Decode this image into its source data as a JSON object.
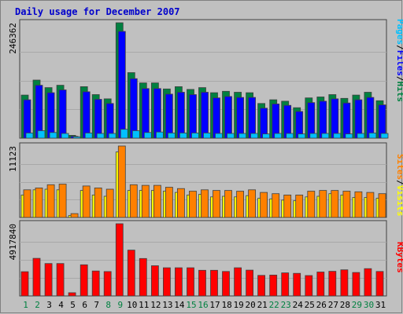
{
  "chart_data": {
    "type": "bar",
    "title": "Daily usage for December 2007",
    "categories": [
      "1",
      "2",
      "3",
      "4",
      "5",
      "6",
      "7",
      "8",
      "9",
      "10",
      "11",
      "12",
      "13",
      "14",
      "15",
      "16",
      "17",
      "18",
      "19",
      "20",
      "21",
      "22",
      "23",
      "24",
      "25",
      "26",
      "27",
      "28",
      "29",
      "30",
      "31"
    ],
    "weekend_days": [
      "1",
      "2",
      "8",
      "9",
      "15",
      "16",
      "22",
      "23",
      "29",
      "30"
    ],
    "colors": {
      "background": "#c0c0c0",
      "border": "#808080",
      "hits": "#008040",
      "files": "#0000ff",
      "pages": "#00c0ff",
      "visits": "#ffff00",
      "sites": "#ff8000",
      "kbytes": "#ff0000",
      "weekday_label": "#000000",
      "weekend_label": "#008040"
    },
    "panels": [
      {
        "ymax": 246362,
        "ytick_label": "246362",
        "ylim": [
          0,
          246362
        ],
        "legend": [
          {
            "text": "Pages",
            "color": "#00c0ff"
          },
          {
            "text": "/",
            "color": "#000000"
          },
          {
            "text": "Files",
            "color": "#0000ff"
          },
          {
            "text": "/",
            "color": "#000000"
          },
          {
            "text": "Hits",
            "color": "#008040"
          }
        ],
        "series": [
          {
            "name": "Hits",
            "color": "#008040",
            "values": [
              92000,
              124000,
              108000,
              113000,
              6000,
              110000,
              93000,
              84000,
              246362,
              140000,
              118000,
              118000,
              105000,
              110000,
              104000,
              108000,
              97000,
              100000,
              98000,
              97000,
              74000,
              82000,
              79000,
              65000,
              86000,
              88000,
              93000,
              85000,
              92000,
              98000,
              80000
            ]
          },
          {
            "name": "Files",
            "color": "#0000ff",
            "values": [
              82000,
              113000,
              97000,
              103000,
              4000,
              99000,
              83000,
              74000,
              228000,
              127000,
              106000,
              106000,
              94000,
              98000,
              93000,
              98000,
              86000,
              89000,
              87000,
              87000,
              64000,
              73000,
              70000,
              57000,
              76000,
              79000,
              84000,
              75000,
              82000,
              87000,
              71000
            ]
          },
          {
            "name": "Pages",
            "color": "#00c0ff",
            "values": [
              11000,
              16000,
              12000,
              10000,
              3000,
              11000,
              10000,
              10000,
              19000,
              16000,
              12000,
              13000,
              11000,
              11000,
              11000,
              11000,
              10000,
              10000,
              10000,
              10000,
              9000,
              10000,
              10000,
              9000,
              10000,
              10000,
              10000,
              9000,
              10000,
              11000,
              10000
            ]
          }
        ]
      },
      {
        "ymax": 11123,
        "ytick_label": "11123",
        "ylim": [
          0,
          11123
        ],
        "legend": [
          {
            "text": "Sites",
            "color": "#ff8000"
          },
          {
            "text": "/",
            "color": "#000000"
          },
          {
            "text": "Visits",
            "color": "#ffff00"
          }
        ],
        "series": [
          {
            "name": "Visits",
            "color": "#ffff00",
            "values": [
              3500,
              4300,
              4400,
              4300,
              300,
              4200,
              3500,
              3300,
              10200,
              4200,
              4200,
              4200,
              4100,
              3900,
              3500,
              3600,
              3200,
              3300,
              3200,
              3400,
              3000,
              2900,
              2700,
              2600,
              3200,
              3300,
              3700,
              3500,
              3100,
              3100,
              3000
            ]
          },
          {
            "name": "Sites",
            "color": "#ff8000",
            "values": [
              4300,
              4600,
              5100,
              5200,
              600,
              4900,
              4600,
              4400,
              11123,
              5100,
              5000,
              5000,
              4700,
              4500,
              4100,
              4300,
              4200,
              4200,
              4100,
              4300,
              3900,
              3700,
              3500,
              3500,
              4100,
              4200,
              4200,
              4100,
              4000,
              3900,
              3700
            ]
          }
        ]
      },
      {
        "ymax": 4917840,
        "ytick_label": "4917840",
        "ylim": [
          0,
          4917840
        ],
        "legend": [
          {
            "text": "KBytes",
            "color": "#ff0000"
          }
        ],
        "series": [
          {
            "name": "KBytes",
            "color": "#ff0000",
            "values": [
              1650000,
              2560000,
              2210000,
              2210000,
              220000,
              2120000,
              1700000,
              1660000,
              4917840,
              3120000,
              2550000,
              2060000,
              1920000,
              1920000,
              1920000,
              1750000,
              1750000,
              1670000,
              1920000,
              1760000,
              1400000,
              1420000,
              1570000,
              1540000,
              1390000,
              1630000,
              1680000,
              1780000,
              1600000,
              1860000,
              1670000
            ]
          }
        ]
      }
    ]
  }
}
